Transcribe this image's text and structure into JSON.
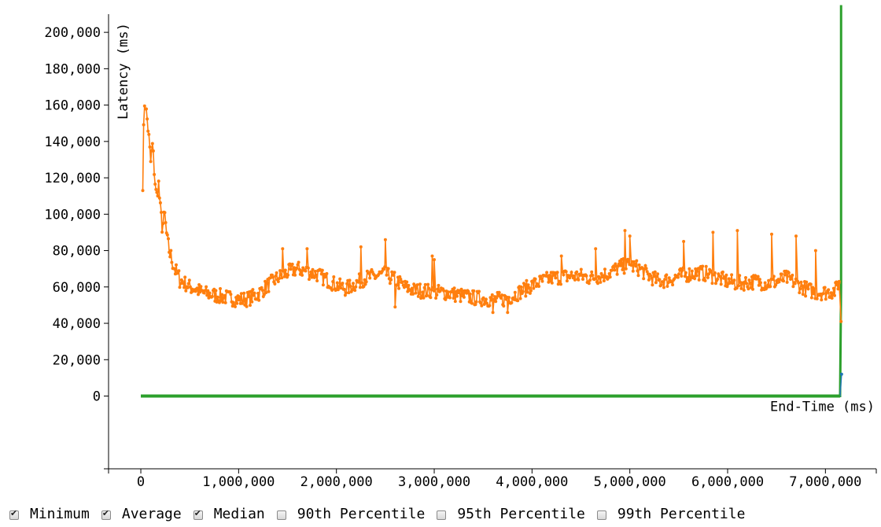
{
  "chart_data": {
    "type": "line",
    "xlabel": "End-Time (ms)",
    "ylabel": "Latency (ms)",
    "xlim": [
      -330000,
      7520000
    ],
    "ylim": [
      -40000,
      210000
    ],
    "x_ticks": [
      0,
      1000000,
      2000000,
      3000000,
      4000000,
      5000000,
      6000000,
      7000000
    ],
    "x_tick_labels": [
      "0",
      "1,000,000",
      "2,000,000",
      "3,000,000",
      "4,000,000",
      "5,000,000",
      "6,000,000",
      "7,000,000"
    ],
    "y_ticks": [
      0,
      20000,
      40000,
      60000,
      80000,
      100000,
      120000,
      140000,
      160000,
      180000,
      200000
    ],
    "y_tick_labels": [
      "0",
      "20,000",
      "40,000",
      "60,000",
      "80,000",
      "100,000",
      "120,000",
      "140,000",
      "160,000",
      "180,000",
      "200,000"
    ],
    "colors": {
      "minimum": "#1f77b4",
      "average": "#ff7f0e",
      "median": "#2ca02c"
    },
    "series": [
      {
        "name": "Average",
        "key": "average",
        "points": [
          [
            20000,
            118000
          ],
          [
            30000,
            148000
          ],
          [
            40000,
            165000
          ],
          [
            55000,
            156000
          ],
          [
            70000,
            150000
          ],
          [
            85000,
            140000
          ],
          [
            100000,
            128000
          ],
          [
            120000,
            138000
          ],
          [
            140000,
            122000
          ],
          [
            160000,
            108000
          ],
          [
            180000,
            118000
          ],
          [
            200000,
            102000
          ],
          [
            220000,
            93000
          ],
          [
            245000,
            99000
          ],
          [
            270000,
            85000
          ],
          [
            300000,
            78000
          ],
          [
            330000,
            73000
          ],
          [
            360000,
            68000
          ],
          [
            400000,
            64000
          ],
          [
            450000,
            62000
          ],
          [
            500000,
            60000
          ],
          [
            560000,
            59000
          ],
          [
            620000,
            57000
          ],
          [
            700000,
            56000
          ],
          [
            800000,
            55000
          ],
          [
            900000,
            54000
          ],
          [
            1000000,
            53000
          ],
          [
            1100000,
            53500
          ],
          [
            1200000,
            56000
          ],
          [
            1300000,
            61000
          ],
          [
            1400000,
            65000
          ],
          [
            1500000,
            68000
          ],
          [
            1600000,
            70000
          ],
          [
            1700000,
            68500
          ],
          [
            1800000,
            67000
          ],
          [
            1900000,
            64000
          ],
          [
            2000000,
            61000
          ],
          [
            2100000,
            59000
          ],
          [
            2200000,
            62000
          ],
          [
            2300000,
            65000
          ],
          [
            2400000,
            66000
          ],
          [
            2500000,
            67000
          ],
          [
            2600000,
            64000
          ],
          [
            2700000,
            60000
          ],
          [
            2800000,
            58000
          ],
          [
            2900000,
            58000
          ],
          [
            3000000,
            57000
          ],
          [
            3100000,
            57000
          ],
          [
            3200000,
            56000
          ],
          [
            3300000,
            55000
          ],
          [
            3400000,
            54000
          ],
          [
            3500000,
            53500
          ],
          [
            3600000,
            53000
          ],
          [
            3700000,
            53000
          ],
          [
            3800000,
            55000
          ],
          [
            3900000,
            58000
          ],
          [
            4000000,
            61000
          ],
          [
            4100000,
            63000
          ],
          [
            4200000,
            65000
          ],
          [
            4300000,
            65500
          ],
          [
            4400000,
            66000
          ],
          [
            4500000,
            66000
          ],
          [
            4600000,
            65000
          ],
          [
            4700000,
            66000
          ],
          [
            4800000,
            68000
          ],
          [
            4900000,
            71000
          ],
          [
            5000000,
            72000
          ],
          [
            5100000,
            70000
          ],
          [
            5200000,
            66000
          ],
          [
            5300000,
            63000
          ],
          [
            5400000,
            64000
          ],
          [
            5500000,
            66000
          ],
          [
            5600000,
            67000
          ],
          [
            5700000,
            68000
          ],
          [
            5800000,
            67000
          ],
          [
            5900000,
            65000
          ],
          [
            6000000,
            63000
          ],
          [
            6100000,
            62000
          ],
          [
            6200000,
            62500
          ],
          [
            6300000,
            63000
          ],
          [
            6400000,
            62000
          ],
          [
            6500000,
            63000
          ],
          [
            6600000,
            65000
          ],
          [
            6700000,
            62000
          ],
          [
            6800000,
            59000
          ],
          [
            6900000,
            57000
          ],
          [
            7000000,
            57000
          ],
          [
            7100000,
            58000
          ],
          [
            7140000,
            63000
          ],
          [
            7160000,
            41000
          ]
        ],
        "spikes": [
          [
            1450000,
            81000
          ],
          [
            1700000,
            81000
          ],
          [
            2250000,
            82000
          ],
          [
            2500000,
            86000
          ],
          [
            2980000,
            77000
          ],
          [
            3000000,
            75000
          ],
          [
            4300000,
            77000
          ],
          [
            4650000,
            81000
          ],
          [
            4950000,
            91000
          ],
          [
            5000000,
            88000
          ],
          [
            5550000,
            85000
          ],
          [
            5850000,
            90000
          ],
          [
            6100000,
            91000
          ],
          [
            6450000,
            89000
          ],
          [
            6700000,
            88000
          ],
          [
            6900000,
            80000
          ],
          [
            3600000,
            46000
          ],
          [
            3750000,
            46000
          ],
          [
            2600000,
            49000
          ]
        ]
      },
      {
        "name": "Median",
        "key": "median",
        "points": [
          [
            0,
            0
          ],
          [
            7150000,
            0
          ],
          [
            7160000,
            60000
          ],
          [
            7160000,
            220000
          ]
        ]
      },
      {
        "name": "Minimum",
        "key": "minimum",
        "points": [
          [
            0,
            0
          ],
          [
            7150000,
            0
          ],
          [
            7165000,
            12000
          ]
        ]
      }
    ]
  },
  "legend": [
    {
      "label": "Minimum",
      "checked": true
    },
    {
      "label": "Average",
      "checked": true
    },
    {
      "label": "Median",
      "checked": true
    },
    {
      "label": "90th Percentile",
      "checked": false
    },
    {
      "label": "95th Percentile",
      "checked": false
    },
    {
      "label": "99th Percentile",
      "checked": false
    }
  ]
}
